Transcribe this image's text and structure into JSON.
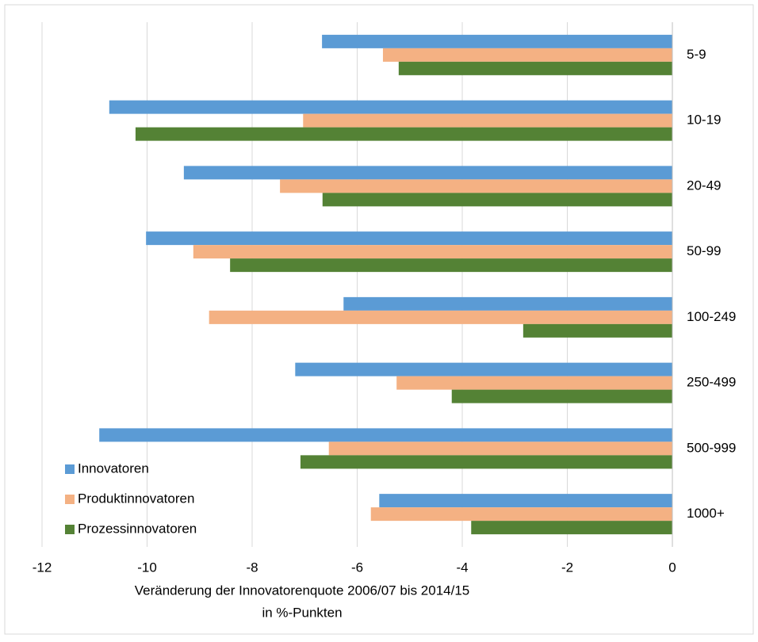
{
  "chart_data": {
    "type": "barh",
    "categories": [
      "5-9",
      "10-19",
      "20-49",
      "50-99",
      "100-249",
      "250-499",
      "500-999",
      "1000+"
    ],
    "series": [
      {
        "name": "Innovatoren",
        "color": "#5b9bd5",
        "values": [
          -6.67,
          -10.72,
          -9.3,
          -10.02,
          -6.26,
          -7.18,
          -10.91,
          -5.58
        ]
      },
      {
        "name": "Produktinnovatoren",
        "color": "#f4b183",
        "values": [
          -5.51,
          -7.03,
          -7.47,
          -9.12,
          -8.82,
          -5.25,
          -6.54,
          -5.74
        ]
      },
      {
        "name": "Prozessinnovatoren",
        "color": "#548235",
        "values": [
          -5.21,
          -10.22,
          -6.66,
          -8.42,
          -2.84,
          -4.2,
          -7.08,
          -3.83
        ]
      }
    ],
    "xlim": [
      -12,
      0
    ],
    "xticks": [
      -12,
      -10,
      -8,
      -6,
      -4,
      -2,
      0
    ],
    "xlabel": [
      "Veränderung der Innovatorenquote 2006/07 bis 2014/15",
      "in %-Punkten"
    ],
    "grid": true,
    "legend": "lower left"
  }
}
